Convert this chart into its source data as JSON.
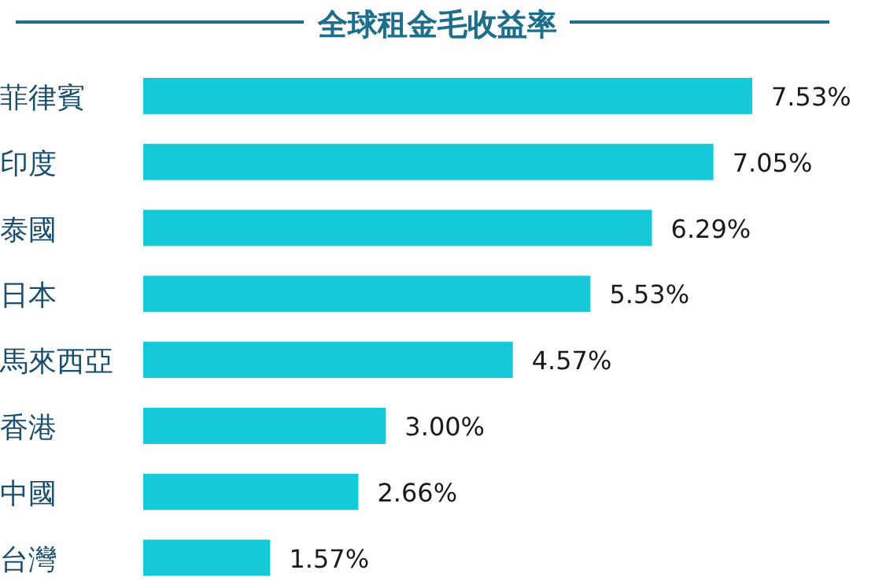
{
  "chart_data": {
    "type": "bar",
    "orientation": "horizontal",
    "title": "全球租金毛收益率",
    "categories": [
      "菲律賓",
      "印度",
      "泰國",
      "日本",
      "馬來西亞",
      "香港",
      "中國",
      "台灣"
    ],
    "values": [
      7.53,
      7.05,
      6.29,
      5.53,
      4.57,
      3.0,
      2.66,
      1.57
    ],
    "value_labels": [
      "7.53%",
      "7.05%",
      "6.29%",
      "5.53%",
      "4.57%",
      "3.00%",
      "2.66%",
      "1.57%"
    ],
    "color": "#16c9d8",
    "tick_labels": "y"
  }
}
